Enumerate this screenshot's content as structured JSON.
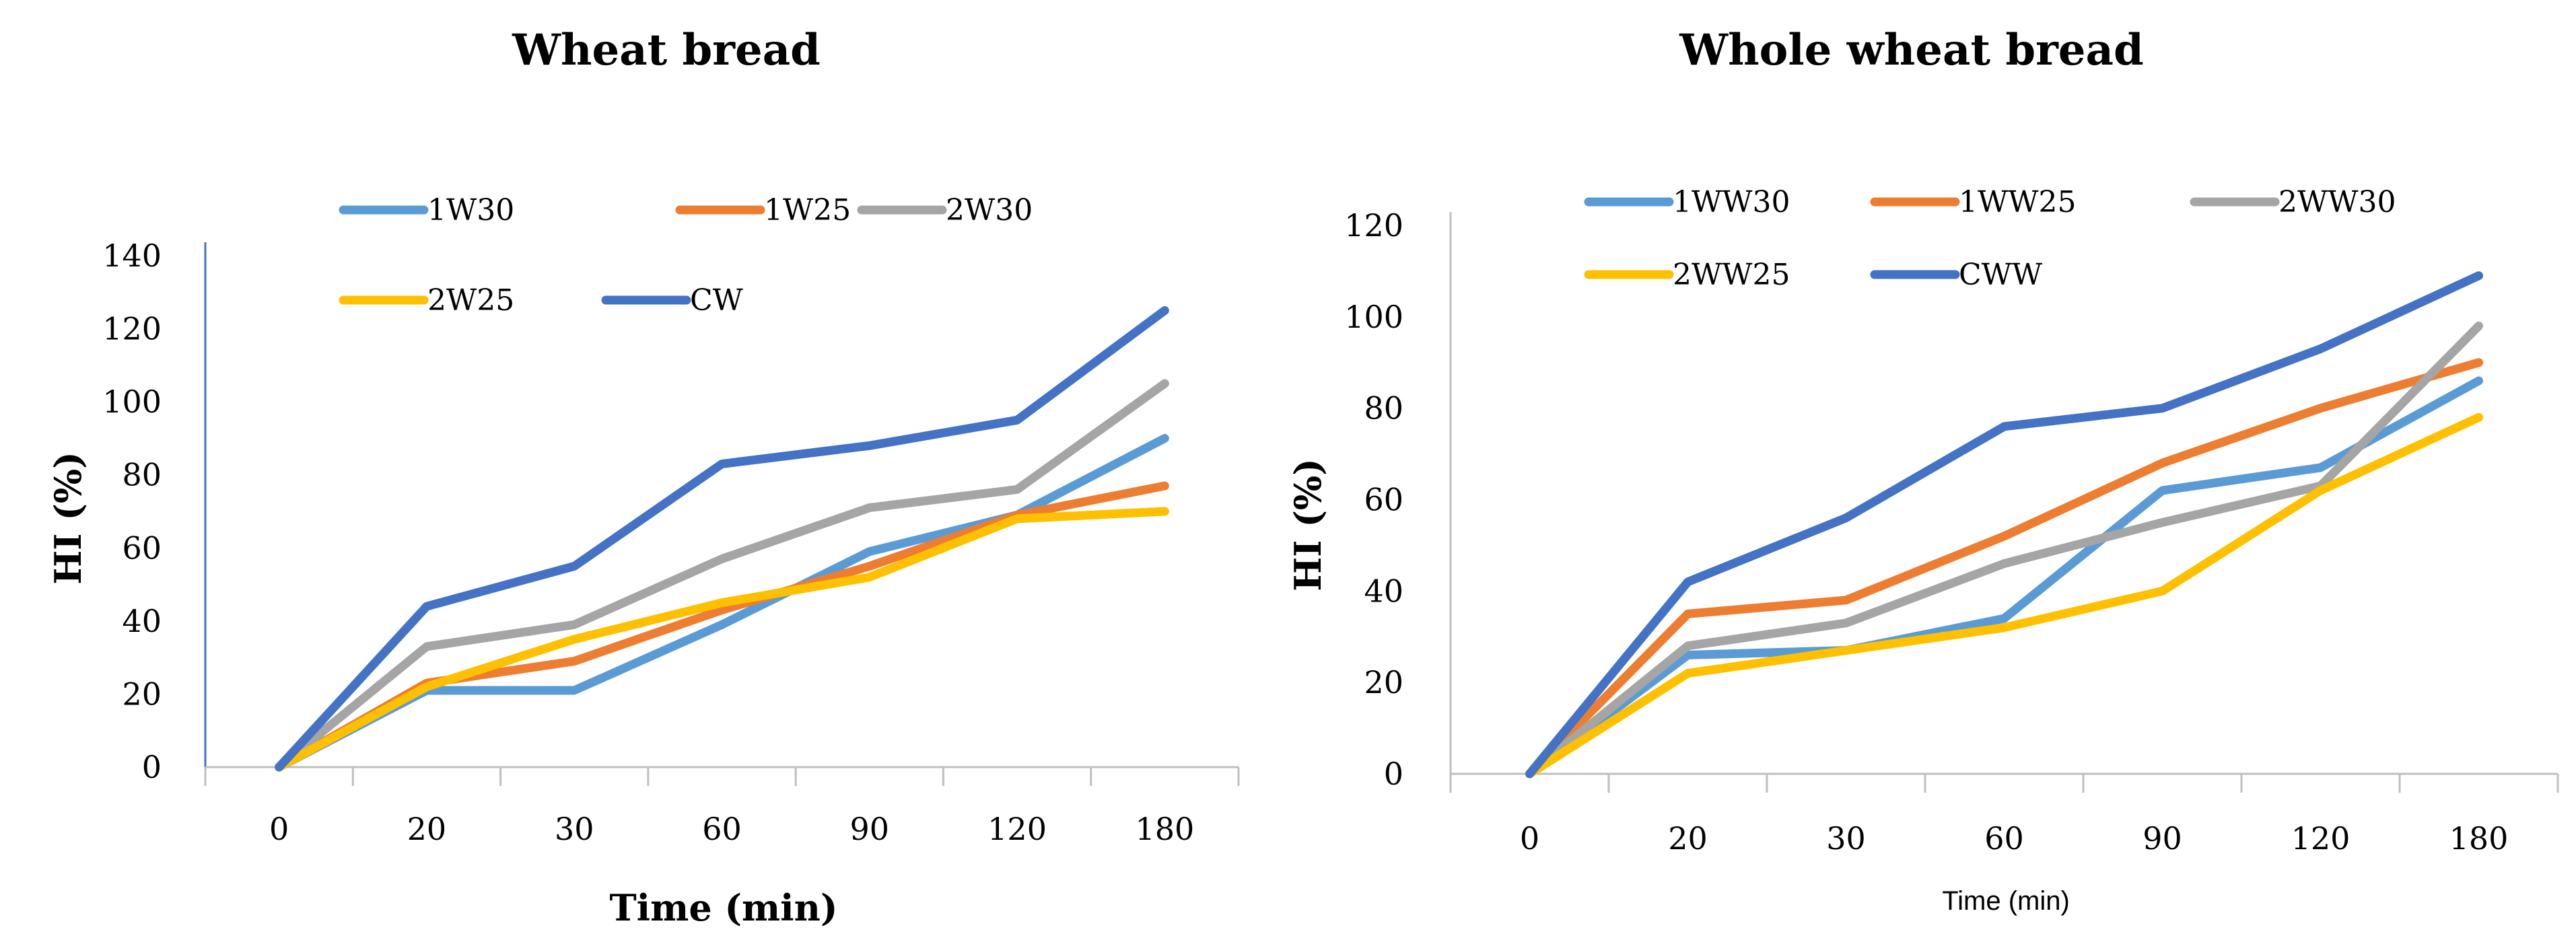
{
  "chart_data": [
    {
      "type": "line",
      "title": "Wheat bread",
      "xlabel": "Time (min)",
      "ylabel": "HI (%)",
      "categories": [
        "0",
        "20",
        "30",
        "60",
        "90",
        "120",
        "180"
      ],
      "ylim": [
        0,
        140
      ],
      "yticks": [
        0,
        20,
        40,
        60,
        80,
        100,
        120,
        140
      ],
      "legend_position": "top",
      "series": [
        {
          "name": "1W30",
          "color": "#5B9BD5",
          "values": [
            0,
            21,
            21,
            39,
            59,
            69,
            90
          ]
        },
        {
          "name": "1W25",
          "color": "#ED7D31",
          "values": [
            0,
            23,
            29,
            43,
            55,
            69,
            77
          ]
        },
        {
          "name": "2W30",
          "color": "#A5A5A5",
          "values": [
            0,
            33,
            39,
            57,
            71,
            76,
            105
          ]
        },
        {
          "name": "2W25",
          "color": "#FFC000",
          "values": [
            0,
            22,
            35,
            45,
            52,
            68,
            70
          ]
        },
        {
          "name": "CW",
          "color": "#4472C4",
          "values": [
            0,
            44,
            55,
            83,
            88,
            95,
            125
          ]
        }
      ]
    },
    {
      "type": "line",
      "title": "Whole wheat bread",
      "xlabel": "Time (min)",
      "ylabel": "HI (%)",
      "categories": [
        "0",
        "20",
        "30",
        "60",
        "90",
        "120",
        "180"
      ],
      "ylim": [
        0,
        120
      ],
      "yticks": [
        0,
        20,
        40,
        60,
        80,
        100,
        120
      ],
      "legend_position": "top",
      "series": [
        {
          "name": "1WW30",
          "color": "#5B9BD5",
          "values": [
            0,
            26,
            27,
            34,
            62,
            67,
            86
          ]
        },
        {
          "name": "1WW25",
          "color": "#ED7D31",
          "values": [
            0,
            35,
            38,
            52,
            68,
            80,
            90
          ]
        },
        {
          "name": "2WW30",
          "color": "#A5A5A5",
          "values": [
            0,
            28,
            33,
            46,
            55,
            63,
            98
          ]
        },
        {
          "name": "2WW25",
          "color": "#FFC000",
          "values": [
            0,
            22,
            27,
            32,
            40,
            62,
            78
          ]
        },
        {
          "name": "CWW",
          "color": "#4472C4",
          "values": [
            0,
            42,
            56,
            76,
            80,
            93,
            109
          ]
        }
      ]
    }
  ]
}
